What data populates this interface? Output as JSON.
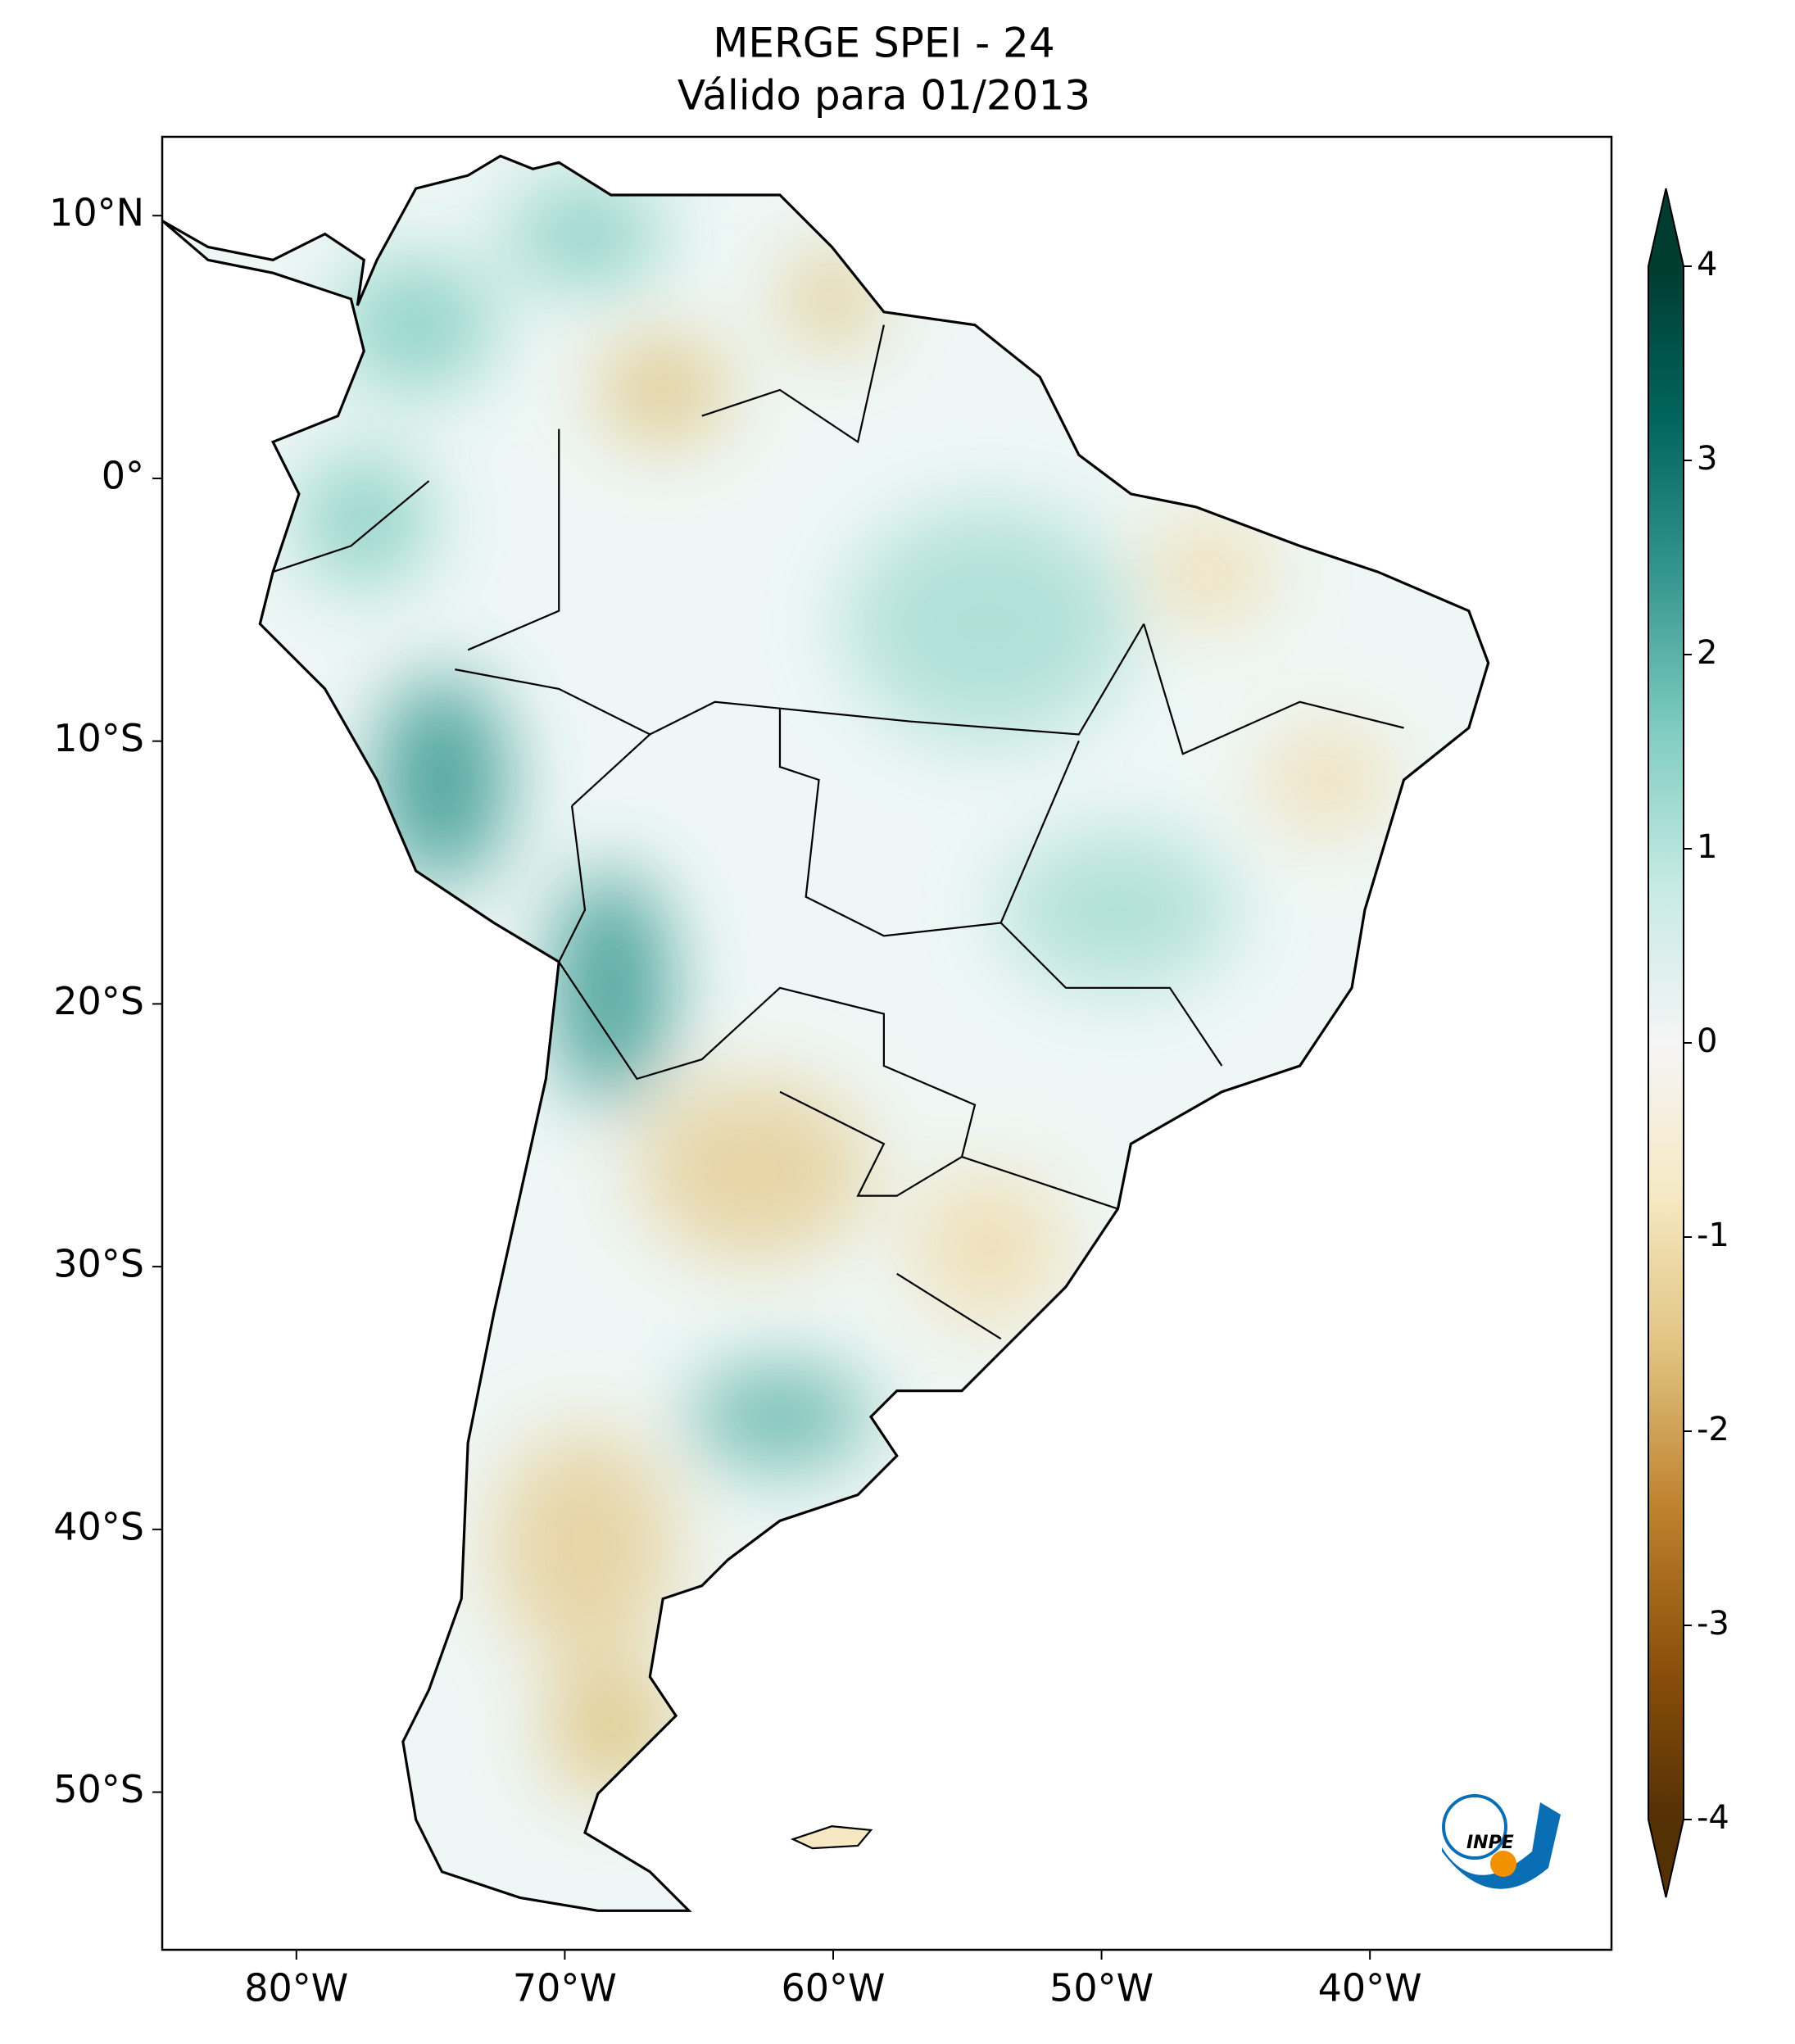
{
  "chart_data": {
    "type": "map",
    "title": "MERGE   SPEI - 24",
    "subtitle": "Válido para 01/2013",
    "xlim": [
      -85,
      -31
    ],
    "ylim": [
      -56,
      13
    ],
    "xticks": [
      {
        "value": -80,
        "label": "80°W"
      },
      {
        "value": -70,
        "label": "70°W"
      },
      {
        "value": -60,
        "label": "60°W"
      },
      {
        "value": -50,
        "label": "50°W"
      },
      {
        "value": -40,
        "label": "40°W"
      }
    ],
    "yticks": [
      {
        "value": 10,
        "label": "10°N"
      },
      {
        "value": 0,
        "label": "0°"
      },
      {
        "value": -10,
        "label": "10°S"
      },
      {
        "value": -20,
        "label": "20°S"
      },
      {
        "value": -30,
        "label": "30°S"
      },
      {
        "value": -40,
        "label": "40°S"
      },
      {
        "value": -50,
        "label": "50°S"
      }
    ],
    "colorbar": {
      "colormap": "BrBG",
      "lim": [
        -4,
        4
      ],
      "ticks": [
        -4,
        -3,
        -2,
        -1,
        0,
        1,
        2,
        3,
        4
      ],
      "extend": "both"
    },
    "logo_text": "INPE"
  }
}
